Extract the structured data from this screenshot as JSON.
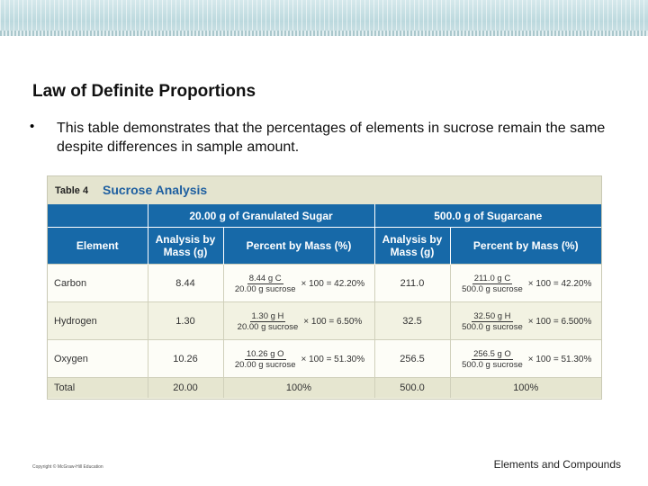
{
  "slide": {
    "title": "Law of Definite Proportions",
    "bullet_marker": "•",
    "bullet": "This table demonstrates that the percentages of elements in sucrose remain the same despite differences in sample amount."
  },
  "table": {
    "caption_number": "Table 4",
    "caption_title": "Sucrose Analysis",
    "group_headers": [
      "20.00 g of Granulated Sugar",
      "500.0 g of Sugarcane"
    ],
    "col_headers": {
      "element": "Element",
      "analysis": "Analysis by Mass (g)",
      "percent": "Percent by Mass (%)"
    },
    "rows": [
      {
        "element": "Carbon",
        "a1": "8.44",
        "p1": {
          "num": "8.44 g C",
          "den": "20.00 g sucrose",
          "rest": "× 100 = 42.20%"
        },
        "a2": "211.0",
        "p2": {
          "num": "211.0 g C",
          "den": "500.0 g sucrose",
          "rest": "× 100 = 42.20%"
        }
      },
      {
        "element": "Hydrogen",
        "a1": "1.30",
        "p1": {
          "num": "1.30 g H",
          "den": "20.00 g sucrose",
          "rest": "× 100 = 6.50%"
        },
        "a2": "32.5",
        "p2": {
          "num": "32.50 g H",
          "den": "500.0 g sucrose",
          "rest": "× 100 = 6.500%"
        }
      },
      {
        "element": "Oxygen",
        "a1": "10.26",
        "p1": {
          "num": "10.26 g O",
          "den": "20.00 g sucrose",
          "rest": "× 100 = 51.30%"
        },
        "a2": "256.5",
        "p2": {
          "num": "256.5 g O",
          "den": "500.0 g sucrose",
          "rest": "× 100 = 51.30%"
        }
      }
    ],
    "total": {
      "element": "Total",
      "a1": "20.00",
      "p1": "100%",
      "a2": "500.0",
      "p2": "100%"
    }
  },
  "footer": {
    "copyright": "Copyright © McGraw-Hill Education",
    "section": "Elements and Compounds"
  }
}
